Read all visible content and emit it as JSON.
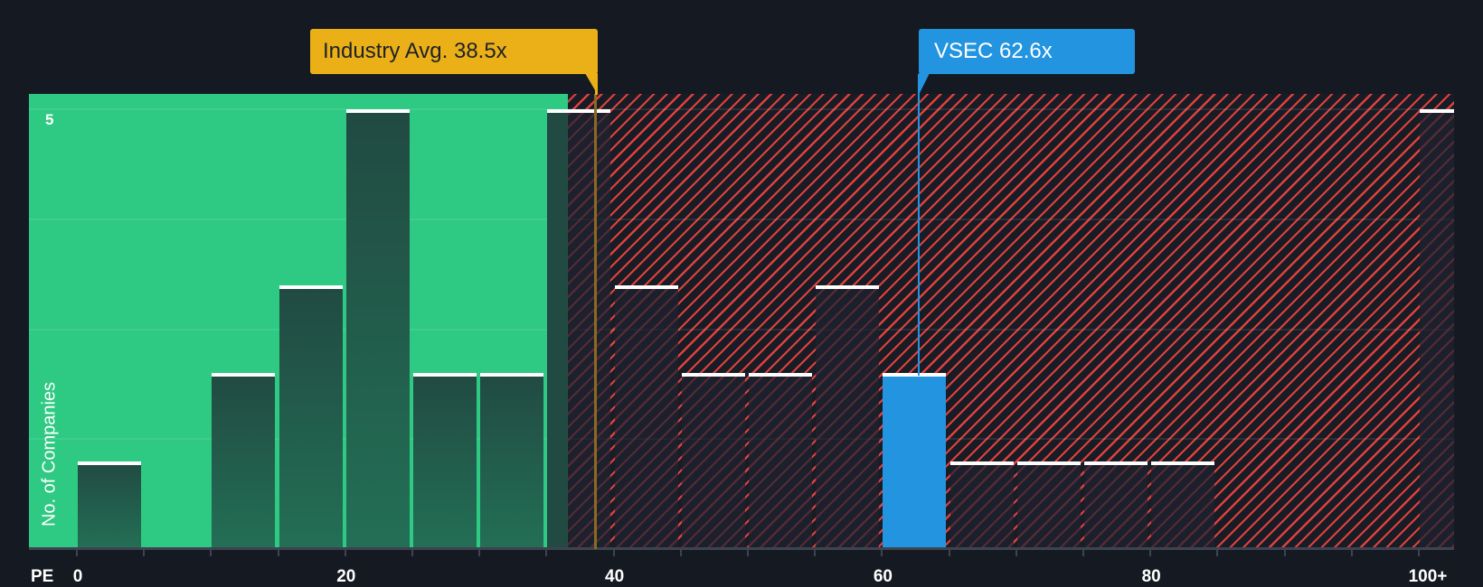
{
  "chart_data": {
    "type": "bar",
    "title": "",
    "xlabel": "PE",
    "ylabel": "No. of Companies",
    "x_ticks": [
      "0",
      "20",
      "40",
      "60",
      "80",
      "100+"
    ],
    "y_ticks": [
      "5"
    ],
    "ylim": [
      0,
      5
    ],
    "bin_width": 5,
    "categories": [
      "0-5",
      "5-10",
      "10-15",
      "15-20",
      "20-25",
      "25-30",
      "30-35",
      "35-40",
      "40-45",
      "45-50",
      "50-55",
      "55-60",
      "60-65",
      "65-70",
      "70-75",
      "75-80",
      "80-85",
      "85-90",
      "90-95",
      "95-100",
      "100+"
    ],
    "values": [
      1,
      0,
      2,
      3,
      5,
      2,
      2,
      5,
      3,
      2,
      2,
      3,
      2,
      1,
      1,
      1,
      1,
      0,
      0,
      0,
      5
    ],
    "highlight_category": "60-65",
    "industry_avg": 38.5,
    "company_value": 62.6,
    "zones": [
      {
        "name": "below-average",
        "from": 0,
        "to": 36.6,
        "color": "#2ec982"
      },
      {
        "name": "above-average",
        "from": 36.6,
        "to": "100+",
        "color": "#e0403f"
      }
    ],
    "annotations": [
      "Industry Avg. 38.5x",
      "VSEC 62.6x"
    ],
    "grid": true,
    "legend": "none"
  },
  "axis": {
    "x_title": "PE",
    "y_title": "No. of Companies",
    "y_tick_5": "5",
    "x_tick_labels": [
      {
        "label": "0",
        "value": 0
      },
      {
        "label": "20",
        "value": 20
      },
      {
        "label": "40",
        "value": 40
      },
      {
        "label": "60",
        "value": 60
      },
      {
        "label": "80",
        "value": 80
      },
      {
        "label": "100+",
        "value": 100
      }
    ]
  },
  "callouts": {
    "industry": {
      "label": "Industry Avg. 38.5x",
      "color": "#ebb018"
    },
    "company": {
      "label": "VSEC 62.6x",
      "color": "#2394e0"
    }
  },
  "colors": {
    "background": "#151a22",
    "green_zone": "#2ec982",
    "red_hatch": "#e0403f",
    "bar_top": "#214a42",
    "bar_bottom": "#236f55",
    "highlight_bar": "#2394e0"
  }
}
